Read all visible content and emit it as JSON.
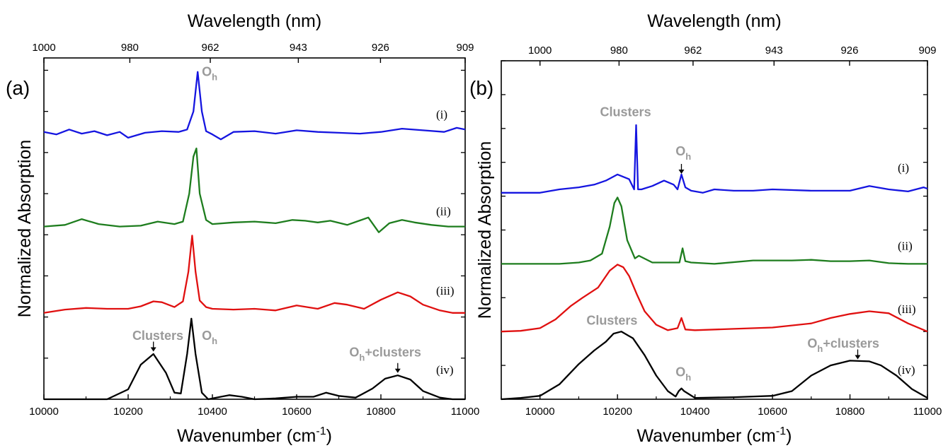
{
  "chart_data": [
    {
      "type": "line",
      "panel_label": "(a)",
      "xlabel": "Wavenumber (cm-1)",
      "xlabel_main": "Wavenumber (cm",
      "xlabel_sup": "-1",
      "xlabel_tail": ")",
      "ylabel": "Normalized Absorption",
      "top_xlabel": "Wavelength (nm)",
      "xlim": [
        10000,
        11000
      ],
      "x_ticks": [
        "10000",
        "10200",
        "10400",
        "10600",
        "10800",
        "11000"
      ],
      "x_tick_values": [
        10000,
        10200,
        10400,
        10600,
        10800,
        11000
      ],
      "top_ticks": [
        "1000",
        "980",
        "962",
        "943",
        "926",
        "909"
      ],
      "top_tick_values": [
        10000,
        10204,
        10395,
        10604,
        10799,
        11001
      ],
      "ylim": [
        0,
        4.15
      ],
      "y_ticks": [
        0,
        0.5,
        1,
        1.5,
        2,
        2.5,
        3,
        3.5,
        4
      ],
      "grid": false,
      "series": [
        {
          "name": "(i)",
          "color": "#1515e0",
          "offset": 3.2,
          "x": [
            10000,
            10030,
            10060,
            10090,
            10120,
            10150,
            10180,
            10200,
            10240,
            10280,
            10320,
            10340,
            10355,
            10365,
            10375,
            10385,
            10400,
            10420,
            10450,
            10500,
            10550,
            10600,
            10650,
            10700,
            10750,
            10800,
            10850,
            10900,
            10950,
            10980,
            11000
          ],
          "values": [
            0.05,
            0.02,
            0.08,
            0.03,
            0.06,
            0.01,
            0.05,
            -0.02,
            0.04,
            0.06,
            0.05,
            0.08,
            0.3,
            0.78,
            0.3,
            0.06,
            0.02,
            -0.04,
            0.05,
            0.06,
            0.03,
            0.07,
            0.05,
            0.04,
            0.03,
            0.05,
            0.09,
            0.07,
            0.05,
            0.1,
            0.08
          ]
        },
        {
          "name": "(ii)",
          "color": "#1e7d1e",
          "offset": 2.1,
          "x": [
            10000,
            10050,
            10090,
            10130,
            10180,
            10230,
            10270,
            10310,
            10330,
            10345,
            10355,
            10362,
            10370,
            10385,
            10400,
            10450,
            10500,
            10550,
            10590,
            10620,
            10650,
            10680,
            10720,
            10770,
            10795,
            10820,
            10850,
            10880,
            10920,
            10960,
            11000
          ],
          "values": [
            0.0,
            0.02,
            0.09,
            0.03,
            0.0,
            0.01,
            0.06,
            0.03,
            0.06,
            0.4,
            0.85,
            0.95,
            0.4,
            0.08,
            0.03,
            0.05,
            0.06,
            0.04,
            0.08,
            0.07,
            0.05,
            0.07,
            0.02,
            0.11,
            -0.07,
            0.04,
            0.08,
            0.05,
            0.02,
            0.0,
            0.0
          ]
        },
        {
          "name": "(iii)",
          "color": "#e01010",
          "offset": 1.05,
          "x": [
            10000,
            10050,
            10100,
            10150,
            10200,
            10230,
            10260,
            10280,
            10310,
            10330,
            10343,
            10352,
            10360,
            10370,
            10385,
            10400,
            10450,
            10500,
            10550,
            10600,
            10650,
            10690,
            10720,
            10760,
            10800,
            10840,
            10870,
            10900,
            10940,
            10970,
            11000
          ],
          "values": [
            0.0,
            0.04,
            0.06,
            0.05,
            0.05,
            0.08,
            0.14,
            0.13,
            0.07,
            0.14,
            0.5,
            0.94,
            0.5,
            0.15,
            0.07,
            0.05,
            0.04,
            0.05,
            0.03,
            0.09,
            0.05,
            0.12,
            0.1,
            0.05,
            0.16,
            0.25,
            0.2,
            0.1,
            0.03,
            0.0,
            0.0
          ]
        },
        {
          "name": "(iv)",
          "color": "#000000",
          "offset": 0.0,
          "x": [
            10000,
            10150,
            10200,
            10230,
            10260,
            10290,
            10310,
            10325,
            10340,
            10350,
            10360,
            10375,
            10390,
            10420,
            10440,
            10470,
            10500,
            10550,
            10600,
            10640,
            10670,
            10700,
            10740,
            10780,
            10810,
            10840,
            10870,
            10900,
            10940,
            10970,
            11000
          ],
          "values": [
            0.0,
            0.0,
            0.12,
            0.42,
            0.55,
            0.32,
            0.08,
            0.07,
            0.55,
            0.98,
            0.55,
            0.08,
            0.0,
            0.03,
            0.05,
            0.03,
            0.0,
            0.01,
            0.03,
            0.03,
            0.08,
            0.04,
            0.02,
            0.13,
            0.25,
            0.29,
            0.24,
            0.1,
            0.02,
            0.0,
            0.0
          ]
        }
      ],
      "annotations": [
        {
          "text": "O",
          "sub": "h",
          "x": 10375,
          "y": 3.93,
          "color": "#9a9a9a",
          "arrow": false
        },
        {
          "text": "Clusters",
          "sub": "",
          "x": 10210,
          "y": 0.72,
          "color": "#9a9a9a",
          "arrow": true,
          "arrow_x": 10260,
          "arrow_y": 0.58
        },
        {
          "text": "O",
          "sub": "h",
          "x": 10375,
          "y": 0.72,
          "color": "#9a9a9a",
          "arrow": false
        },
        {
          "text": "O",
          "sub": "h",
          "text_tail": "+clusters",
          "x": 10725,
          "y": 0.52,
          "color": "#9a9a9a",
          "arrow": true,
          "arrow_x": 10840,
          "arrow_y": 0.32
        }
      ]
    },
    {
      "type": "line",
      "panel_label": "(b)",
      "xlabel": "Wavenumber (cm-1)",
      "xlabel_main": "Wavenumber (cm",
      "xlabel_sup": "-1",
      "xlabel_tail": ")",
      "ylabel": "Normalized Absorption",
      "top_xlabel": "Wavelength (nm)",
      "xlim": [
        9900,
        11000
      ],
      "x_ticks": [
        "10000",
        "10200",
        "10400",
        "10600",
        "10800",
        "11000"
      ],
      "x_tick_values": [
        10000,
        10200,
        10400,
        10600,
        10800,
        11000
      ],
      "top_ticks": [
        "1000",
        "980",
        "962",
        "943",
        "926",
        "909"
      ],
      "top_tick_values": [
        10000,
        10204,
        10395,
        10604,
        10799,
        11001
      ],
      "ylim": [
        0,
        5.0
      ],
      "y_ticks": [
        0,
        0.5,
        1,
        1.5,
        2,
        2.5,
        3,
        3.5,
        4,
        4.5,
        5
      ],
      "grid": false,
      "series": [
        {
          "name": "(i)",
          "color": "#1515e0",
          "offset": 3.05,
          "x": [
            9900,
            10000,
            10050,
            10100,
            10140,
            10170,
            10200,
            10230,
            10243,
            10248,
            10253,
            10262,
            10290,
            10320,
            10345,
            10355,
            10365,
            10375,
            10390,
            10420,
            10450,
            10500,
            10550,
            10600,
            10700,
            10800,
            10850,
            10900,
            10950,
            10990,
            11000
          ],
          "values": [
            0.0,
            0.0,
            0.05,
            0.08,
            0.12,
            0.18,
            0.27,
            0.2,
            0.05,
            1.0,
            0.05,
            0.05,
            0.1,
            0.18,
            0.12,
            0.05,
            0.27,
            0.08,
            0.03,
            0.0,
            0.05,
            0.03,
            0.03,
            0.05,
            0.03,
            0.03,
            0.1,
            0.05,
            0.02,
            0.08,
            0.06
          ]
        },
        {
          "name": "(ii)",
          "color": "#1e7d1e",
          "offset": 2.0,
          "x": [
            9900,
            10050,
            10100,
            10130,
            10160,
            10180,
            10192,
            10200,
            10210,
            10225,
            10245,
            10255,
            10290,
            10320,
            10360,
            10368,
            10375,
            10390,
            10450,
            10550,
            10650,
            10700,
            10750,
            10800,
            10850,
            10900,
            10950,
            11000
          ],
          "values": [
            0.0,
            0.0,
            0.02,
            0.05,
            0.15,
            0.55,
            0.9,
            0.98,
            0.85,
            0.35,
            0.08,
            0.12,
            0.02,
            0.02,
            0.02,
            0.23,
            0.04,
            0.02,
            0.0,
            0.05,
            0.05,
            0.06,
            0.04,
            0.04,
            0.05,
            0.01,
            0.0,
            0.0
          ]
        },
        {
          "name": "(iii)",
          "color": "#e01010",
          "offset": 1.0,
          "x": [
            9900,
            9950,
            10000,
            10040,
            10080,
            10110,
            10150,
            10180,
            10200,
            10215,
            10230,
            10250,
            10270,
            10300,
            10330,
            10355,
            10365,
            10375,
            10400,
            10500,
            10600,
            10700,
            10750,
            10800,
            10850,
            10900,
            10950,
            11000
          ],
          "values": [
            0.0,
            0.01,
            0.05,
            0.18,
            0.38,
            0.5,
            0.65,
            0.9,
            0.99,
            0.95,
            0.82,
            0.55,
            0.3,
            0.1,
            0.02,
            0.05,
            0.2,
            0.03,
            0.02,
            0.04,
            0.06,
            0.12,
            0.2,
            0.26,
            0.3,
            0.27,
            0.12,
            0.0
          ]
        },
        {
          "name": "(iv)",
          "color": "#000000",
          "offset": 0.0,
          "x": [
            9900,
            9950,
            10000,
            10050,
            10100,
            10140,
            10170,
            10190,
            10210,
            10240,
            10270,
            10300,
            10330,
            10350,
            10358,
            10365,
            10372,
            10400,
            10500,
            10600,
            10650,
            10700,
            10750,
            10800,
            10850,
            10880,
            10920,
            10960,
            11000
          ],
          "values": [
            0.0,
            0.02,
            0.05,
            0.22,
            0.52,
            0.72,
            0.85,
            0.97,
            1.0,
            0.9,
            0.65,
            0.35,
            0.12,
            0.04,
            0.12,
            0.16,
            0.12,
            0.02,
            0.03,
            0.05,
            0.12,
            0.35,
            0.5,
            0.57,
            0.56,
            0.5,
            0.35,
            0.15,
            0.02
          ]
        }
      ],
      "annotations": [
        {
          "text": "Clusters",
          "sub": "",
          "x": 10155,
          "y": 4.18,
          "color": "#9a9a9a",
          "arrow": false
        },
        {
          "text": "O",
          "sub": "h",
          "x": 10350,
          "y": 3.6,
          "color": "#9a9a9a",
          "arrow": true,
          "arrow_x": 10365,
          "arrow_y": 3.33
        },
        {
          "text": "Clusters",
          "sub": "",
          "x": 10120,
          "y": 1.1,
          "color": "#9a9a9a",
          "arrow": false
        },
        {
          "text": "O",
          "sub": "h",
          "x": 10350,
          "y": 0.34,
          "color": "#9a9a9a",
          "arrow": false
        },
        {
          "text": "O",
          "sub": "h",
          "text_tail": "+clusters",
          "x": 10690,
          "y": 0.76,
          "color": "#9a9a9a",
          "arrow": true,
          "arrow_x": 10820,
          "arrow_y": 0.59
        }
      ]
    }
  ]
}
